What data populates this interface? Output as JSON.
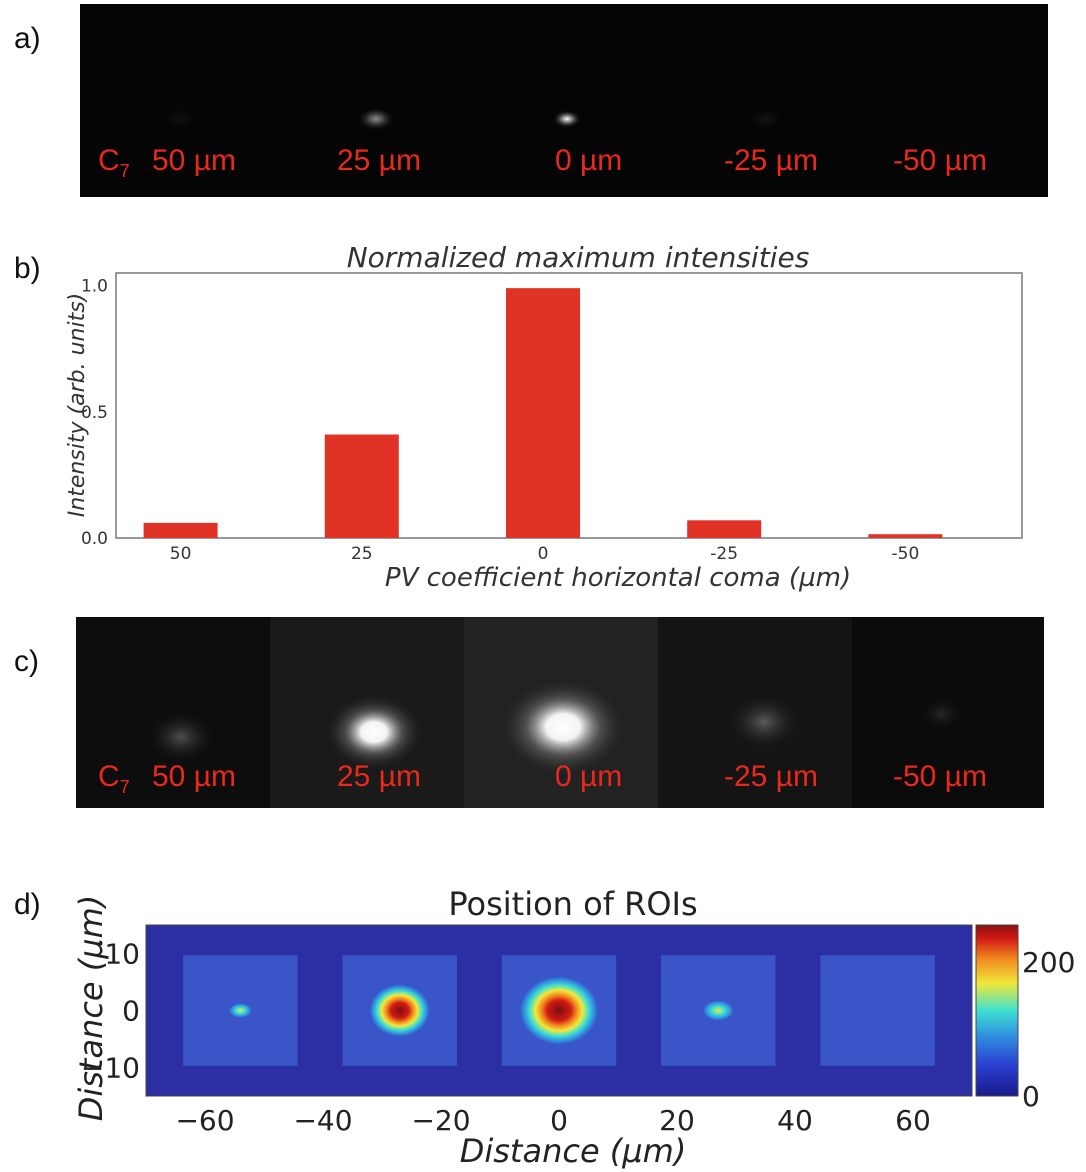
{
  "panel_a": {
    "letter": "a)",
    "c_symbol": "C",
    "c_subscript": "7",
    "labels": [
      "50 µm",
      "25 µm",
      "0 µm",
      "-25 µm",
      "-50 µm"
    ],
    "spot_brightness": [
      0.04,
      0.55,
      1.0,
      0.06,
      0.0
    ]
  },
  "panel_b": {
    "letter": "b)"
  },
  "panel_c": {
    "letter": "c)",
    "c_symbol": "C",
    "c_subscript": "7",
    "labels": [
      "50 µm",
      "25 µm",
      "0 µm",
      "-25 µm",
      "-50 µm"
    ],
    "spot_brightness": [
      0.35,
      1.0,
      1.0,
      0.4,
      0.1
    ]
  },
  "panel_d": {
    "letter": "d)"
  },
  "chart_data": [
    {
      "type": "bar",
      "title": "Normalized maximum intensities",
      "xlabel": "PV coefficient horizontal coma (µm)",
      "ylabel": "Intensity (arb. units)",
      "categories": [
        "50",
        "25",
        "0",
        "-25",
        "-50"
      ],
      "values": [
        0.06,
        0.41,
        0.99,
        0.07,
        0.015
      ],
      "yticks": [
        "0.0",
        "0.5",
        "1.0"
      ],
      "ylim": [
        0,
        1.05
      ],
      "color": "#e03325",
      "grid": false
    },
    {
      "type": "heatmap",
      "title": "Position of ROIs",
      "xlabel": "Distance (µm)",
      "ylabel": "Distance (µm)",
      "xticks": [
        "−60",
        "−40",
        "−20",
        "0",
        "20",
        "40",
        "60"
      ],
      "yticks": [
        "10",
        "0",
        "−10"
      ],
      "xlim": [
        -70,
        70
      ],
      "ylim": [
        -15,
        15
      ],
      "colorbar_ticks": [
        "200",
        "0"
      ],
      "colorbar_range": [
        0,
        255
      ],
      "roi_centers_x": [
        -54,
        -27,
        0,
        27,
        54
      ],
      "roi_peak_values": [
        70,
        255,
        255,
        90,
        0
      ],
      "colormap": [
        "#1a1a8c",
        "#2a3fd0",
        "#2f8fe0",
        "#3fe0d0",
        "#f2e83a",
        "#f08a1e",
        "#d21a14",
        "#7a0f0f"
      ]
    }
  ]
}
